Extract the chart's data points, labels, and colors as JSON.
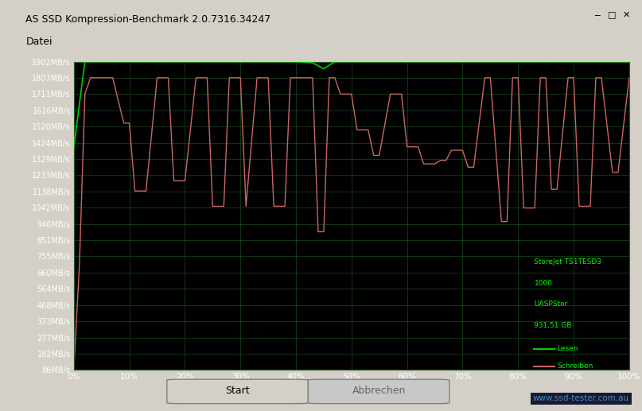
{
  "title": "AS SSD Kompression-Benchmark 2.0.7316.34247",
  "menu_item": "Datei",
  "bg_color": "#000000",
  "plot_bg_color": "#0a0a0a",
  "window_bg": "#d4d0c8",
  "grid_color": "#1a3a1a",
  "yticks": [
    86,
    182,
    277,
    373,
    468,
    564,
    660,
    755,
    851,
    946,
    1042,
    1138,
    1233,
    1329,
    1424,
    1520,
    1616,
    1711,
    1807,
    1902
  ],
  "xticks": [
    0,
    10,
    20,
    30,
    40,
    50,
    60,
    70,
    80,
    90,
    100
  ],
  "ylabel_color": "#ffffff",
  "xlabel_color": "#ffffff",
  "read_color": "#00cc00",
  "write_color": "#cc6666",
  "legend_text_color": "#00ff00",
  "legend_box_color": "#003300",
  "info_text": [
    "StoreJet TS1TESD3",
    "1000",
    "UASPStor",
    "931,51 GB"
  ],
  "legend_entries": [
    "Lesen",
    "Schreiben"
  ],
  "read_x": [
    0,
    2,
    5,
    10,
    15,
    20,
    25,
    30,
    35,
    40,
    43,
    45,
    47,
    50,
    55,
    60,
    65,
    70,
    75,
    80,
    85,
    90,
    95,
    100
  ],
  "read_y": [
    1400,
    1902,
    1902,
    1902,
    1902,
    1902,
    1902,
    1902,
    1902,
    1902,
    1895,
    1860,
    1902,
    1902,
    1902,
    1902,
    1902,
    1902,
    1902,
    1902,
    1902,
    1902,
    1902,
    1902
  ],
  "write_x": [
    0,
    1,
    2,
    3,
    5,
    7,
    9,
    10,
    11,
    13,
    15,
    17,
    18,
    20,
    22,
    24,
    25,
    27,
    28,
    30,
    31,
    33,
    35,
    36,
    38,
    39,
    40,
    42,
    43,
    44,
    45,
    46,
    47,
    48,
    50,
    51,
    53,
    54,
    55,
    57,
    59,
    60,
    62,
    63,
    65,
    66,
    67,
    68,
    70,
    71,
    72,
    74,
    75,
    77,
    78,
    79,
    80,
    81,
    83,
    84,
    85,
    86,
    87,
    89,
    90,
    91,
    93,
    94,
    95,
    97,
    98,
    100
  ],
  "write_y": [
    86,
    700,
    1711,
    1807,
    1807,
    1807,
    1540,
    1540,
    1140,
    1140,
    1807,
    1807,
    1200,
    1200,
    1807,
    1807,
    1050,
    1050,
    1807,
    1807,
    1050,
    1807,
    1807,
    1050,
    1050,
    1807,
    1807,
    1807,
    1807,
    900,
    900,
    1807,
    1807,
    1711,
    1711,
    1500,
    1500,
    1350,
    1350,
    1711,
    1711,
    1400,
    1400,
    1300,
    1300,
    1320,
    1320,
    1380,
    1380,
    1280,
    1280,
    1807,
    1807,
    960,
    960,
    1807,
    1807,
    1040,
    1040,
    1807,
    1807,
    1150,
    1150,
    1807,
    1807,
    1050,
    1050,
    1807,
    1807,
    1250,
    1250,
    1807
  ]
}
